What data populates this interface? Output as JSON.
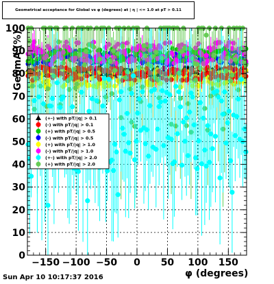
{
  "title": "Geometrical acceptance for Global vs φ (degrees) at | η | <= 1.0 at pT > 0.11",
  "date_stamp": "Sun Apr 10 10:17:37 2016",
  "chart_data": {
    "type": "scatter",
    "title": "Geometrical acceptance for Global vs φ (degrees) at | η | <= 1.0 at pT > 0.11",
    "xlabel": "φ (degrees)",
    "ylabel": "GeomA (%)",
    "xlim": [
      -180,
      180
    ],
    "ylim": [
      0,
      100
    ],
    "xticks": [
      -150,
      -100,
      -50,
      0,
      50,
      100,
      150
    ],
    "yticks": [
      0,
      10,
      20,
      30,
      40,
      50,
      60,
      70,
      80,
      90,
      100
    ],
    "grid": true,
    "legend_position": "left-middle",
    "series": [
      {
        "name": "(+-) with pT/|q| > 0.1",
        "color": "#000000",
        "marker": "triangle",
        "level": 81,
        "spread": 2
      },
      {
        "name": "(-) with pT/|q| > 0.1",
        "color": "#ff0000",
        "marker": "circle",
        "level": 80,
        "spread": 3
      },
      {
        "name": "(+) with pT/|q| > 0.5",
        "color": "#00cc00",
        "marker": "circle",
        "level": 88,
        "spread": 3
      },
      {
        "name": "(-) with pT/|q| > 0.5",
        "color": "#0000ff",
        "marker": "circle",
        "level": 87,
        "spread": 3
      },
      {
        "name": "(+) with pT/|q| > 1.0",
        "color": "#ffff00",
        "marker": "circle",
        "level": 78,
        "spread": 4
      },
      {
        "name": "(-) with pT/|q| > 1.0",
        "color": "#ff00ff",
        "marker": "circle",
        "level": 89,
        "spread": 5
      },
      {
        "name": "(+-) with pT/|q| > 2.0",
        "color": "#00ffff",
        "marker": "circle",
        "level": 55,
        "spread": 18
      },
      {
        "name": "(+) with pT/|q| > 2.0",
        "color": "#66cc55",
        "marker": "circle",
        "level": 75,
        "spread": 22
      }
    ]
  }
}
